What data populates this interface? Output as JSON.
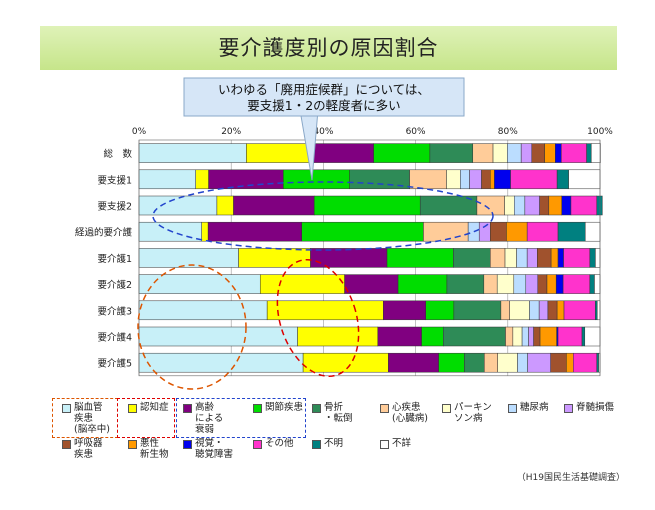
{
  "banner": {
    "title": "要介護度別の原因割合"
  },
  "callout": {
    "line1": "いわゆる「廃用症候群」については、",
    "line2": "要支援1・2の軽度者に多い"
  },
  "source": "（H19国民生活基礎調査）",
  "legend": [
    {
      "label": "脳血管\n疾患\n(脳卒中)",
      "color": "#c8f0f8"
    },
    {
      "label": "認知症",
      "color": "#ffff00"
    },
    {
      "label": "高齢\nによる\n衰弱",
      "color": "#800080"
    },
    {
      "label": "関節疾患",
      "color": "#00dd00"
    },
    {
      "label": "骨折\n・転倒",
      "color": "#2e8b57"
    },
    {
      "label": "心疾患\n(心臓病)",
      "color": "#ffcc99"
    },
    {
      "label": "パーキン\nソン病",
      "color": "#ffffcc"
    },
    {
      "label": "糖尿病",
      "color": "#bbddff"
    },
    {
      "label": "脊髄損傷",
      "color": "#cc99ff"
    },
    {
      "label": "呼吸器\n疾患",
      "color": "#a0522d"
    },
    {
      "label": "悪性\n新生物",
      "color": "#ff9900"
    },
    {
      "label": "視覚・\n聴覚障害",
      "color": "#0000ee"
    },
    {
      "label": "その他",
      "color": "#ff33cc"
    },
    {
      "label": "不明",
      "color": "#008080"
    },
    {
      "label": "不詳",
      "color": "#ffffff"
    }
  ],
  "chart_data": {
    "type": "bar",
    "orientation": "horizontal",
    "stacked": true,
    "title": "要介護度別の原因割合",
    "xlim": [
      0,
      100
    ],
    "xticks": [
      "0%",
      "20%",
      "40%",
      "60%",
      "80%",
      "100%"
    ],
    "grid": true,
    "categories": [
      "総　数",
      "要支援1",
      "要支援2",
      "経過的要介護",
      "要介護1",
      "要介護2",
      "要介護3",
      "要介護4",
      "要介護5"
    ],
    "series": [
      {
        "name": "脳血管疾患(脳卒中)",
        "color": "#c8f0f8",
        "values": [
          23.3,
          12.3,
          16.9,
          13.6,
          21.6,
          26.3,
          27.8,
          34.4,
          35.6
        ]
      },
      {
        "name": "認知症",
        "color": "#ffff00",
        "values": [
          14.0,
          2.8,
          3.6,
          1.4,
          15.6,
          18.3,
          25.2,
          17.4,
          18.5
        ]
      },
      {
        "name": "高齢による衰弱",
        "color": "#800080",
        "values": [
          13.6,
          16.2,
          17.5,
          20.3,
          16.6,
          11.6,
          9.2,
          9.5,
          10.9
        ]
      },
      {
        "name": "関節疾患",
        "color": "#00dd00",
        "values": [
          12.2,
          14.4,
          23.0,
          26.4,
          14.4,
          10.6,
          6.1,
          4.7,
          5.6
        ]
      },
      {
        "name": "骨折・転倒",
        "color": "#2e8b57",
        "values": [
          9.3,
          13.0,
          12.3,
          0,
          8.0,
          8.0,
          10.2,
          13.5,
          4.3
        ]
      },
      {
        "name": "心疾患(心臓病)",
        "color": "#ffcc99",
        "values": [
          4.4,
          8.0,
          6.0,
          9.7,
          3.2,
          2.9,
          1.9,
          1.6,
          2.9
        ]
      },
      {
        "name": "パーキンソン病",
        "color": "#ffffcc",
        "values": [
          3.1,
          3.0,
          2.1,
          0,
          2.5,
          3.6,
          4.3,
          2.0,
          4.3
        ]
      },
      {
        "name": "糖尿病",
        "color": "#bbddff",
        "values": [
          3.0,
          2.0,
          2.3,
          2.4,
          2.3,
          2.6,
          2.1,
          1.4,
          2.2
        ]
      },
      {
        "name": "脊髄損傷",
        "color": "#cc99ff",
        "values": [
          2.3,
          2.6,
          3.2,
          2.4,
          2.2,
          2.6,
          1.9,
          1.1,
          5.0
        ]
      },
      {
        "name": "呼吸器疾患",
        "color": "#a0522d",
        "values": [
          2.8,
          1.9,
          2.0,
          3.5,
          3.0,
          2.0,
          2.0,
          1.4,
          3.4
        ]
      },
      {
        "name": "悪性新生物",
        "color": "#ff9900",
        "values": [
          2.3,
          0.9,
          2.8,
          4.5,
          1.5,
          2.0,
          1.5,
          3.6,
          1.5
        ]
      },
      {
        "name": "視覚・聴覚障害",
        "color": "#0000ee",
        "values": [
          1.3,
          3.5,
          2.0,
          0,
          1.2,
          1.5,
          0,
          0.3,
          0
        ]
      },
      {
        "name": "その他",
        "color": "#ff33cc",
        "values": [
          5.5,
          10.1,
          5.6,
          6.7,
          5.7,
          5.8,
          6.8,
          5.2,
          5.1
        ]
      },
      {
        "name": "不明",
        "color": "#008080",
        "values": [
          1.0,
          2.5,
          1.2,
          5.9,
          1.2,
          1.0,
          0.4,
          0.6,
          0.4
        ]
      },
      {
        "name": "不詳",
        "color": "#ffffff",
        "values": [
          2.0,
          6.8,
          0,
          3.2,
          1.0,
          1.2,
          0.6,
          3.3,
          0.3
        ]
      }
    ]
  }
}
